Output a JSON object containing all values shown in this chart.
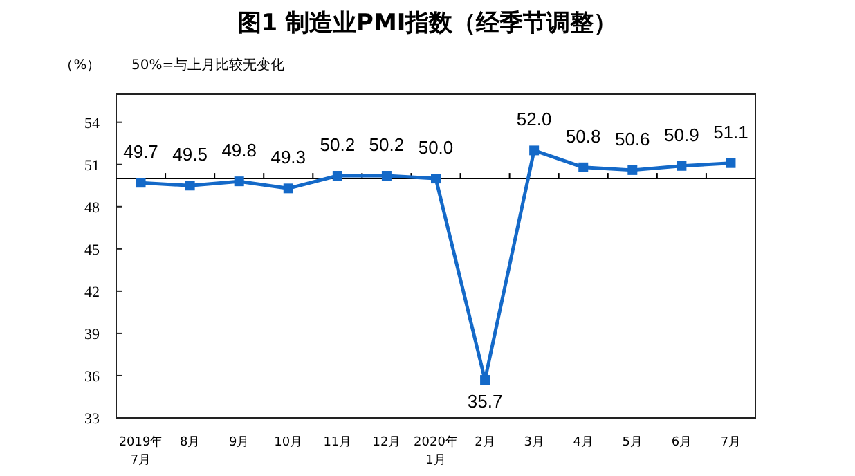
{
  "chart_data": {
    "type": "line",
    "title": "图1 制造业PMI指数（经季节调整）",
    "ylabel": "（%）",
    "annotations": [
      "50%=与上月比较无变化"
    ],
    "categories": [
      "2019年\n7月",
      "8月",
      "9月",
      "10月",
      "11月",
      "12月",
      "2020年\n1月",
      "2月",
      "3月",
      "4月",
      "5月",
      "6月",
      "7月"
    ],
    "values": [
      49.7,
      49.5,
      49.8,
      49.3,
      50.2,
      50.2,
      50.0,
      35.7,
      52.0,
      50.8,
      50.6,
      50.9,
      51.1
    ],
    "value_labels": [
      "49.7",
      "49.5",
      "49.8",
      "49.3",
      "50.2",
      "50.2",
      "50.0",
      "35.7",
      "52.0",
      "50.8",
      "50.6",
      "50.9",
      "51.1"
    ],
    "color": "#1469c8",
    "marker": "square",
    "ylim": [
      33,
      56
    ],
    "yticks": [
      33,
      36,
      39,
      42,
      45,
      48,
      51,
      54
    ],
    "ref_lines": [
      {
        "axis": "y",
        "value": 50,
        "color": "#000000"
      }
    ],
    "grid": false
  }
}
